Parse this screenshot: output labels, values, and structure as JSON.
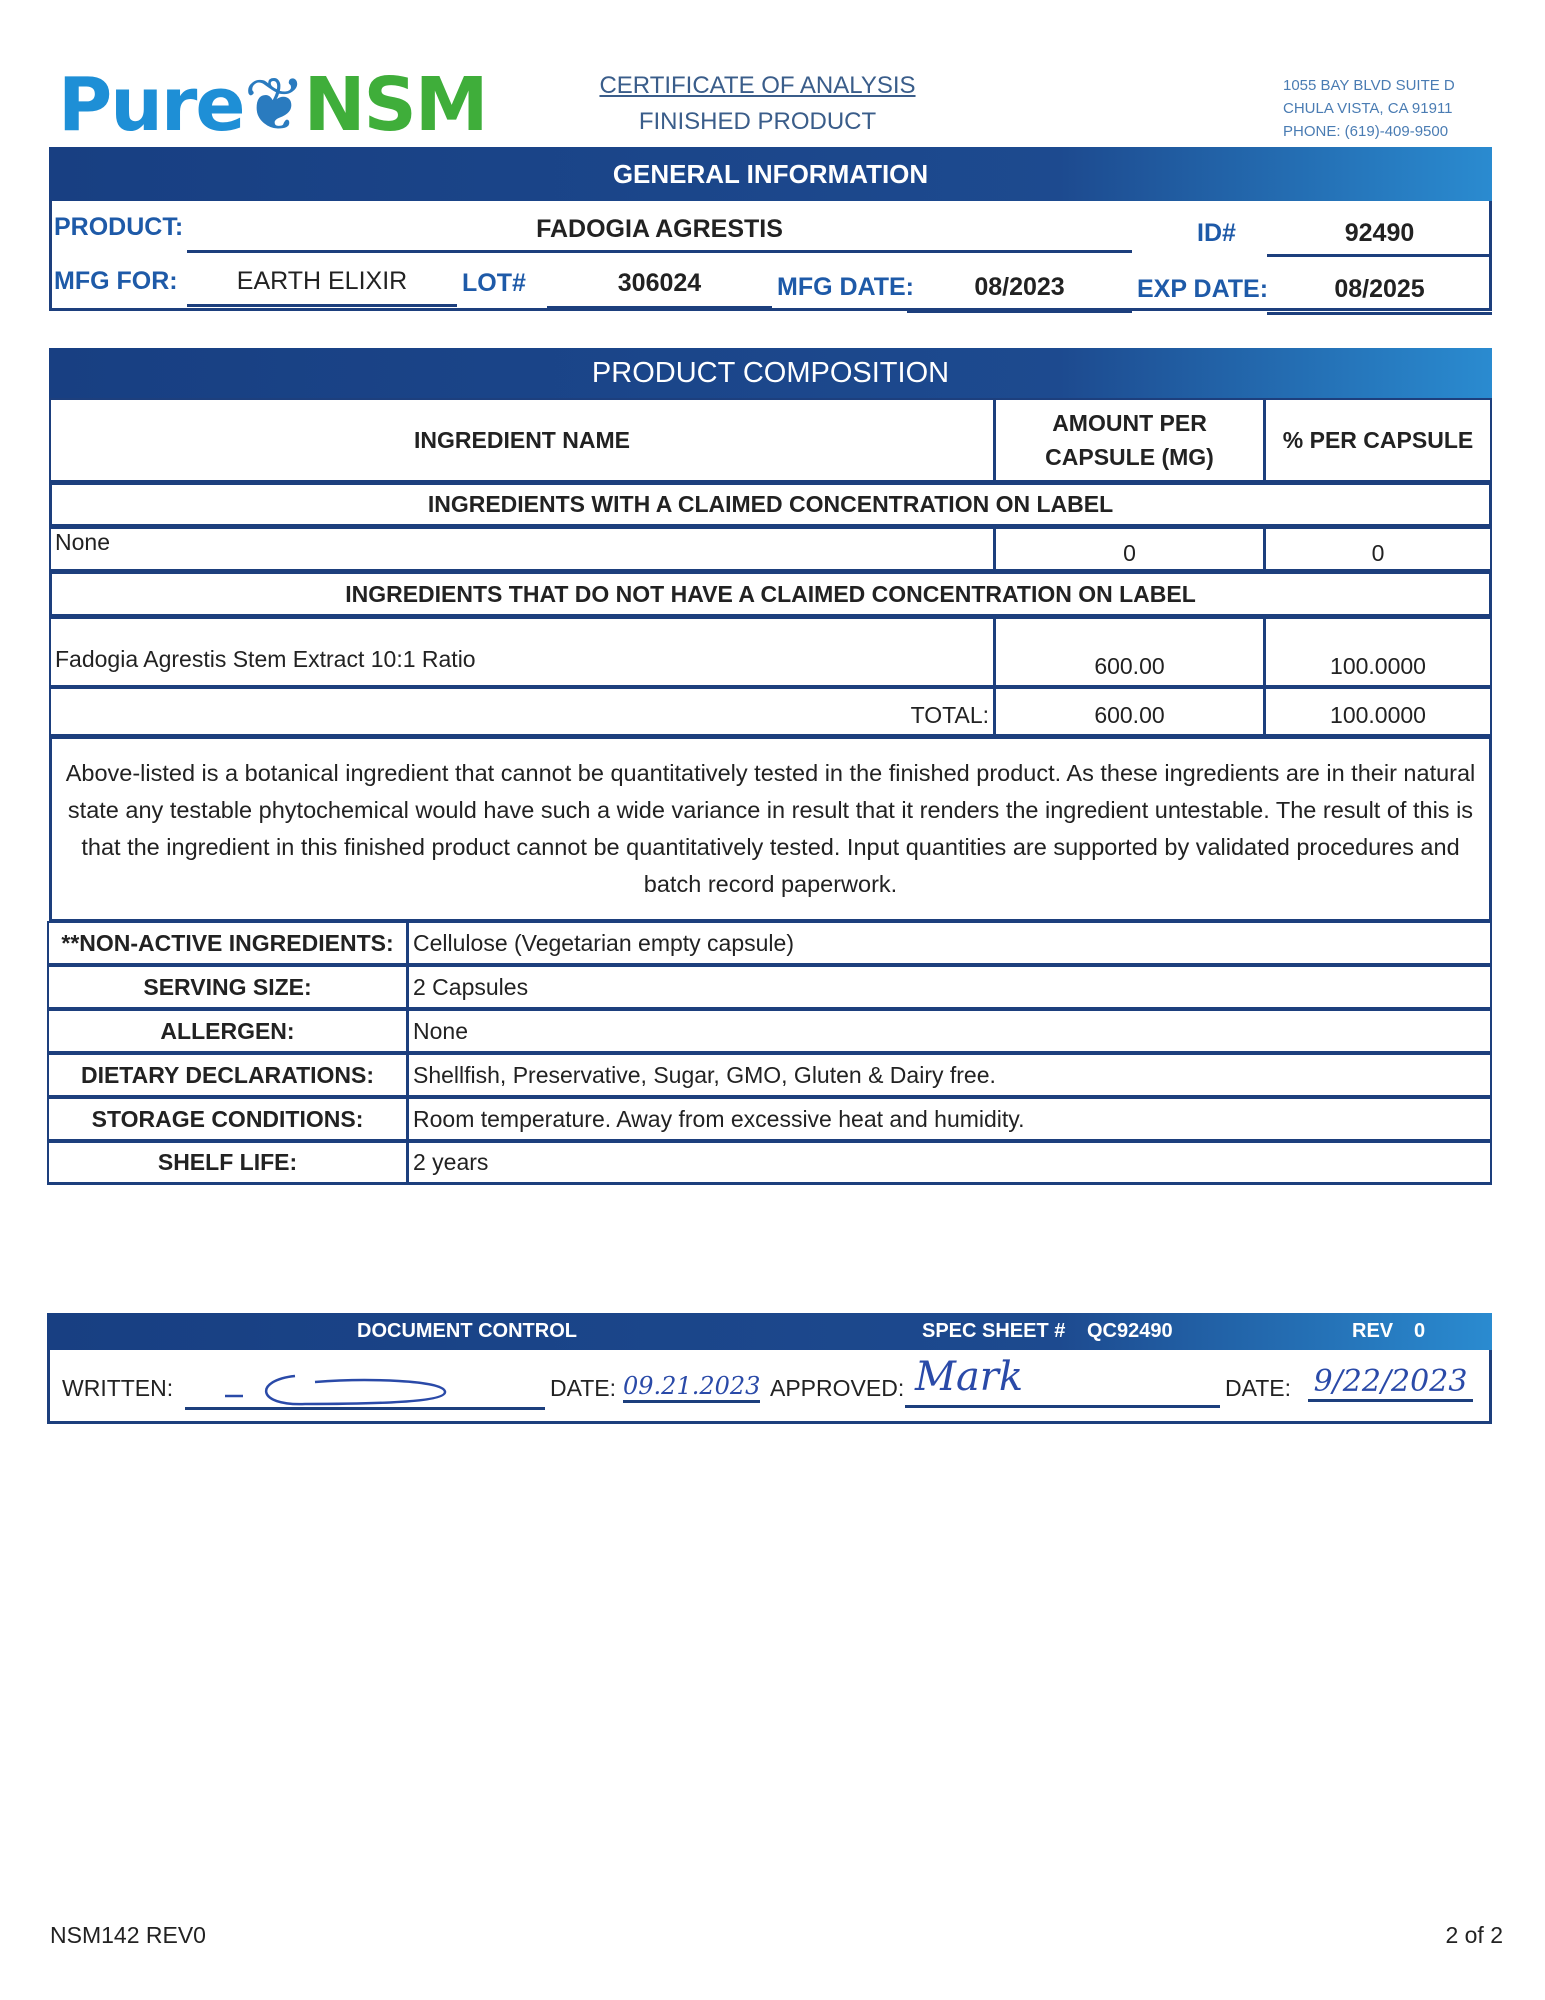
{
  "header": {
    "logo_text": "PureNSM",
    "logo_part1": "Pure",
    "logo_part2": "NSM",
    "title": "CERTIFICATE OF ANALYSIS",
    "subtitle": "FINISHED PRODUCT",
    "address": [
      "1055 BAY BLVD SUITE D",
      "CHULA VISTA, CA 91911",
      "PHONE: (619)-409-9500"
    ]
  },
  "general": {
    "heading": "GENERAL INFORMATION",
    "product_label": "PRODUCT:",
    "product": "FADOGIA AGRESTIS",
    "id_label": "ID#",
    "id": "92490",
    "mfg_for_label": "MFG FOR:",
    "mfg_for": "EARTH ELIXIR",
    "lot_label": "LOT#",
    "lot": "306024",
    "mfg_date_label": "MFG DATE:",
    "mfg_date": "08/2023",
    "exp_date_label": "EXP DATE:",
    "exp_date": "08/2025"
  },
  "composition": {
    "heading": "PRODUCT COMPOSITION",
    "col_name": "INGREDIENT NAME",
    "col_amount_1": "AMOUNT PER",
    "col_amount_2": "CAPSULE (MG)",
    "col_percent": "% PER CAPSULE",
    "claimed_heading": "INGREDIENTS WITH A CLAIMED CONCENTRATION ON LABEL",
    "claimed_rows": [
      {
        "name": "None",
        "amount": "0",
        "percent": "0"
      }
    ],
    "unclaimed_heading": "INGREDIENTS THAT DO NOT HAVE A CLAIMED CONCENTRATION ON LABEL",
    "unclaimed_rows": [
      {
        "name": "Fadogia Agrestis Stem Extract 10:1 Ratio",
        "amount": "600.00",
        "percent": "100.0000"
      }
    ],
    "total_label": "TOTAL:",
    "total_amount": "600.00",
    "total_percent": "100.0000",
    "note": "Above-listed is a botanical ingredient that cannot be quantitatively tested in the finished product. As these ingredients are in their natural state any testable phytochemical would have such a wide variance in result that it renders the ingredient untestable. The result of this is that the ingredient in this finished product cannot be quantitatively tested. Input quantities are supported by validated procedures and batch record paperwork."
  },
  "details": [
    {
      "label": "**NON-ACTIVE INGREDIENTS:",
      "value": "Cellulose (Vegetarian empty capsule)"
    },
    {
      "label": "SERVING SIZE:",
      "value": "2 Capsules"
    },
    {
      "label": "ALLERGEN:",
      "value": "None"
    },
    {
      "label": "DIETARY DECLARATIONS:",
      "value": "Shellfish, Preservative, Sugar, GMO, Gluten & Dairy free."
    },
    {
      "label": "STORAGE CONDITIONS:",
      "value": "Room temperature. Away from excessive heat and humidity."
    },
    {
      "label": "SHELF LIFE:",
      "value": "2 years"
    }
  ],
  "document_control": {
    "heading": "DOCUMENT CONTROL",
    "spec_label": "SPEC SHEET #",
    "spec": "QC92490",
    "rev_label": "REV",
    "rev": "0",
    "written_label": "WRITTEN:",
    "date_label": "DATE:",
    "written_date": "09.21.2023",
    "approved_label": "APPROVED:",
    "approved_signature": "Mark",
    "approved_date": "9/22/2023"
  },
  "footer": {
    "form": "NSM142 REV0",
    "page": "2 of 2"
  }
}
